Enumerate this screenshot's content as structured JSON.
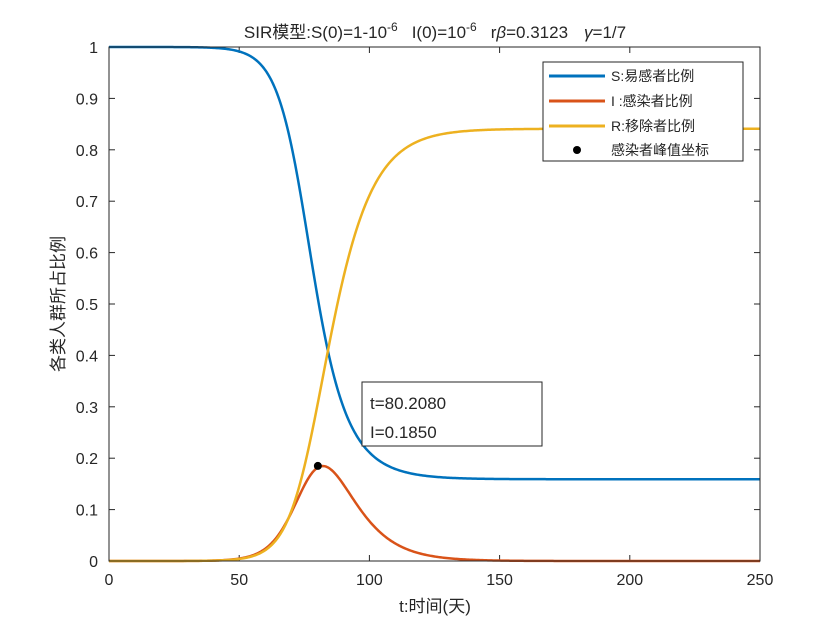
{
  "chart_data": {
    "type": "line",
    "title": {
      "prefix": "SIR模型:S(0)=1-10",
      "s0_exp": "-6",
      "i0": "I(0)=10",
      "i0_exp": "-6",
      "r": "r",
      "beta_sym": "β",
      "beta_val": "=0.3123",
      "gamma_sym": "γ",
      "gamma_val": "=1/7"
    },
    "xlabel": "t:时间(天)",
    "ylabel": "各类人群所占比例",
    "xlim": [
      0,
      250
    ],
    "ylim": [
      0,
      1
    ],
    "xticks": [
      "0",
      "50",
      "100",
      "150",
      "200",
      "250"
    ],
    "yticks": [
      "0",
      "0.1",
      "0.2",
      "0.3",
      "0.4",
      "0.5",
      "0.6",
      "0.7",
      "0.8",
      "0.9",
      "1"
    ],
    "grid": false,
    "legend_position": "top-right",
    "model": {
      "beta": 0.3123,
      "gamma": 0.142857,
      "S0": 0.999999,
      "I0": 1e-06,
      "t_end": 250
    },
    "series": [
      {
        "name": "S:易感者比例",
        "color": "#0072BD",
        "final": 0.159
      },
      {
        "name": "I :感染者比例",
        "color": "#D95319",
        "peak": 0.185
      },
      {
        "name": "R:移除者比例",
        "color": "#EDB120",
        "final": 0.841
      }
    ],
    "peak_point": {
      "name": "感染者峰值坐标",
      "x": 80.208,
      "y": 0.185,
      "color": "#000000"
    },
    "annotation": {
      "line1": "t=80.2080",
      "line2": "I=0.1850"
    }
  }
}
